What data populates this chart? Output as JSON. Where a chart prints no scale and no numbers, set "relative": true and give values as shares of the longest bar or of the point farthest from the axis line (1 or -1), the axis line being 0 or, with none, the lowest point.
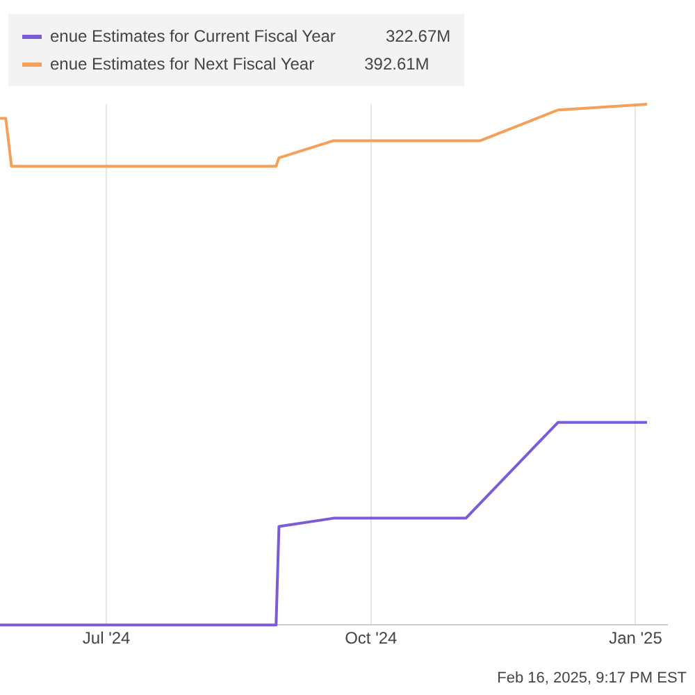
{
  "chart_data": {
    "type": "line",
    "relative": true,
    "x": [
      "2024-05-25",
      "2024-05-27",
      "2024-05-29",
      "2024-08-29",
      "2024-08-30",
      "2024-09-18",
      "2024-11-08",
      "2024-12-05",
      "2025-01-05"
    ],
    "series": [
      {
        "name": "enue Estimates for Current Fiscal Year",
        "color": "#7b5cd6",
        "x": [
          "2024-05-25",
          "2024-08-29",
          "2024-08-30",
          "2024-09-18",
          "2024-11-03",
          "2024-12-05",
          "2025-01-05"
        ],
        "values": [
          0,
          0,
          0.189,
          0.205,
          0.205,
          0.389,
          0.389
        ]
      },
      {
        "name": "enue Estimates for Next Fiscal Year",
        "color": "#f5a05a",
        "values": [
          0.973,
          0.973,
          0.881,
          0.881,
          0.897,
          0.93,
          0.93,
          0.989,
          1
        ]
      }
    ],
    "xlim": [
      "2024-05-25",
      "2025-01-12"
    ],
    "xticks": [
      {
        "value": "2024-07-01",
        "label": "Jul '24"
      },
      {
        "value": "2024-10-01",
        "label": "Oct '24"
      },
      {
        "value": "2025-01-01",
        "label": "Jan '25"
      }
    ],
    "grid": "x",
    "legend": "top left",
    "marker": "none",
    "line_style": "solid",
    "annotations": [
      "322.67M",
      "392.61M",
      "Feb 16, 2025, 9:17 PM EST"
    ]
  }
}
